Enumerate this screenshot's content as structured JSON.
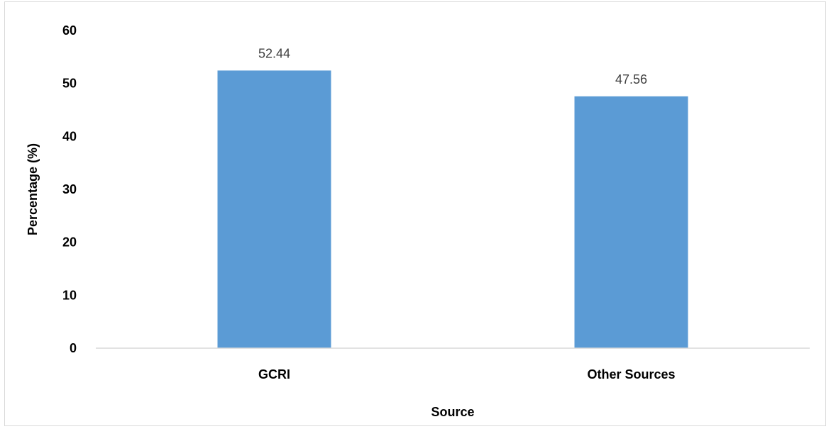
{
  "chart_data": {
    "type": "bar",
    "categories": [
      "GCRI",
      "Other Sources"
    ],
    "values": [
      52.44,
      47.56
    ],
    "data_labels": [
      "52.44",
      "47.56"
    ],
    "title": "",
    "xlabel": "Source",
    "ylabel": "Percentage (%)",
    "ylim": [
      0,
      60
    ],
    "yticks": [
      "0",
      "10",
      "20",
      "30",
      "40",
      "50",
      "60"
    ],
    "grid": false,
    "legend": "none",
    "bar_color": "#5b9bd5",
    "axis_color": "#d9d9d9"
  }
}
